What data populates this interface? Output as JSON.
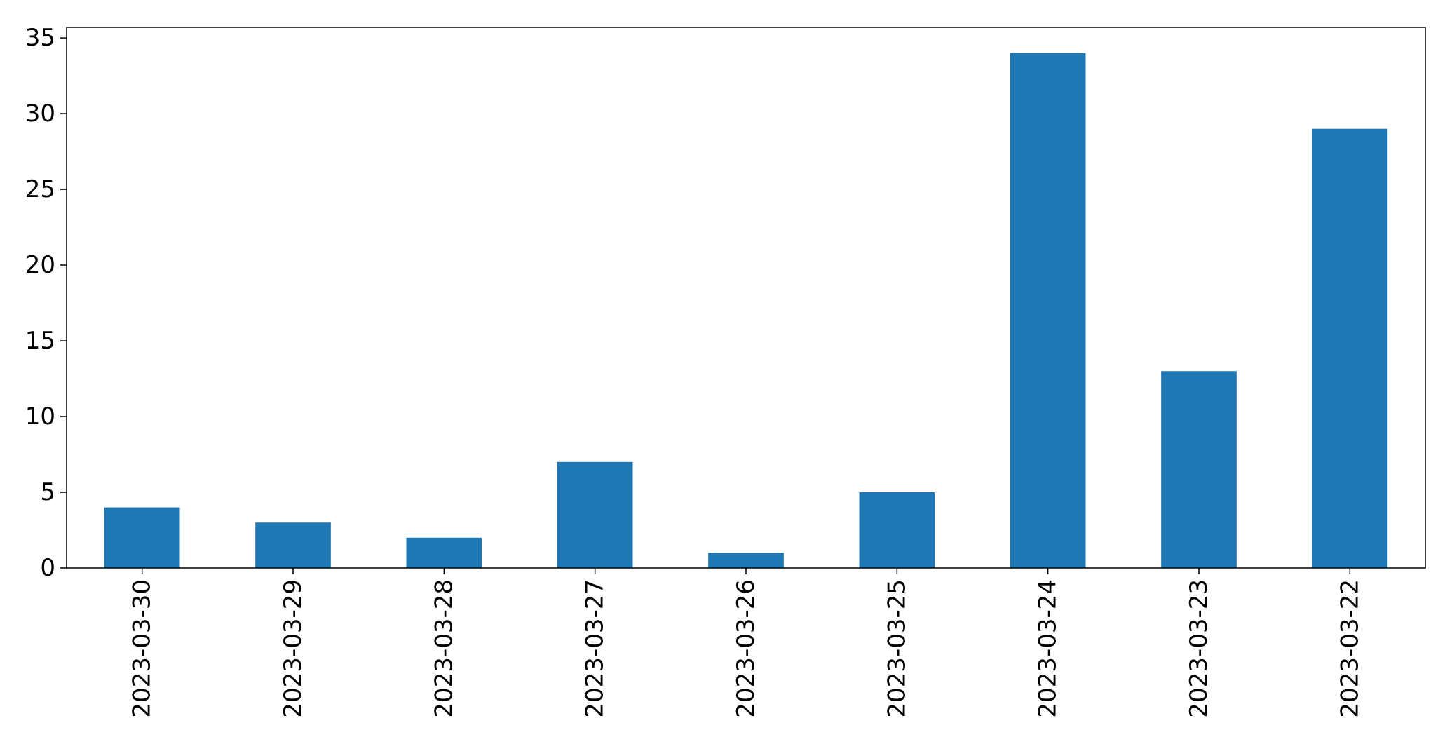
{
  "chart_data": {
    "type": "bar",
    "title": "",
    "xlabel": "",
    "ylabel": "",
    "categories": [
      "2023-03-30",
      "2023-03-29",
      "2023-03-28",
      "2023-03-27",
      "2023-03-26",
      "2023-03-25",
      "2023-03-24",
      "2023-03-23",
      "2023-03-22"
    ],
    "values": [
      4,
      3,
      2,
      7,
      1,
      5,
      34,
      13,
      29
    ],
    "ylim": [
      0,
      35.7
    ],
    "yticks": [
      0,
      5,
      10,
      15,
      20,
      25,
      30,
      35
    ],
    "grid": false,
    "legend": "none",
    "colors": {
      "bar": "#1f77b4",
      "axis": "#000000",
      "background": "#ffffff"
    }
  }
}
